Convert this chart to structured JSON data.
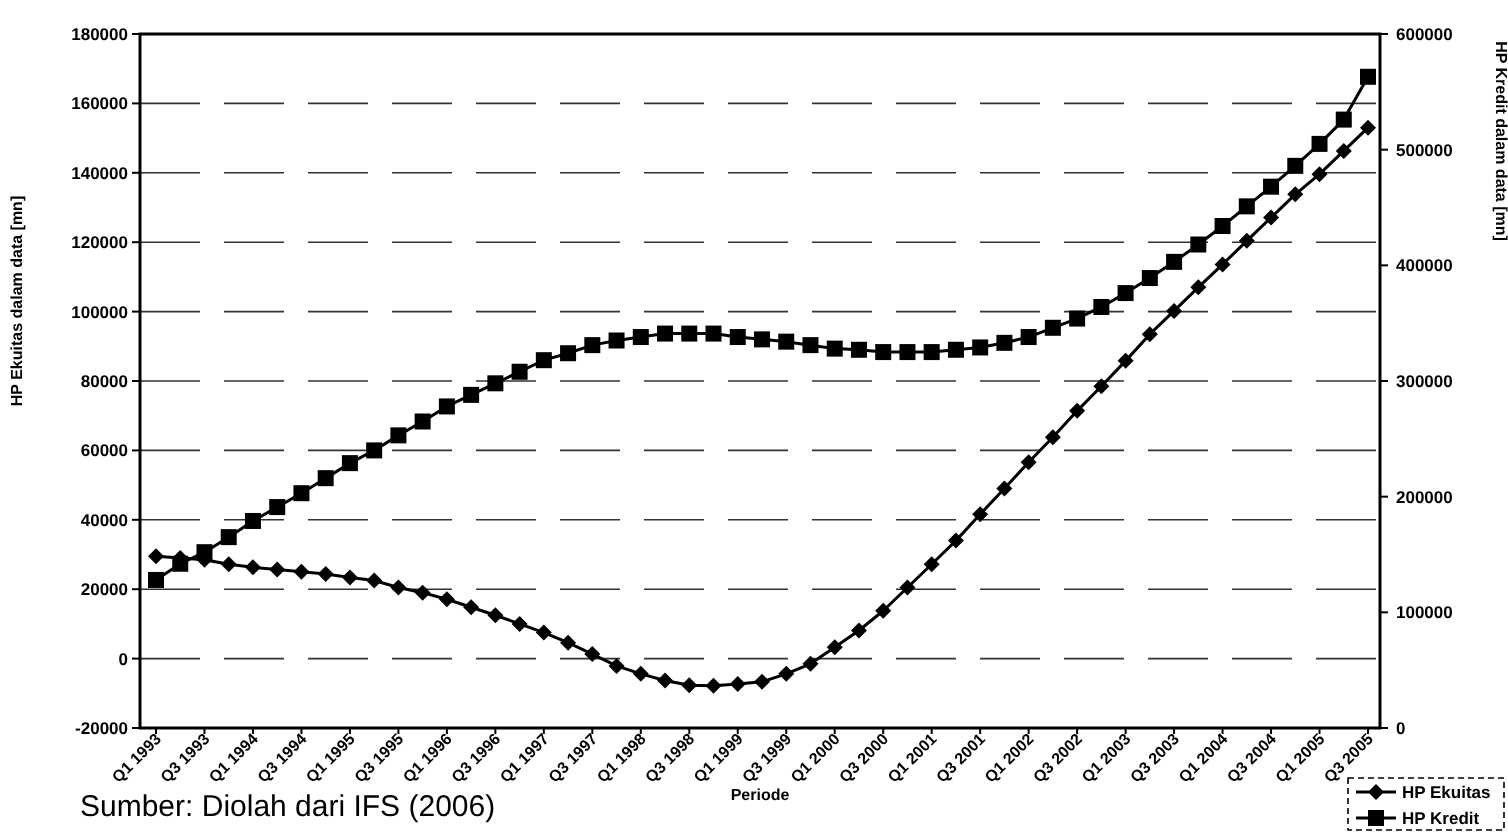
{
  "chart_data": {
    "type": "line",
    "xlabel": "Periode",
    "ylabel": "HP Ekuitas dalam data [mn]",
    "y2label": "HP Kredit dalam data [mn]",
    "annotations": [
      "Sumber: Diolah dari IFS (2006)"
    ],
    "categories": [
      "Q1 1993",
      null,
      "Q3 1993",
      null,
      "Q1 1994",
      null,
      "Q3 1994",
      null,
      "Q1 1995",
      null,
      "Q3 1995",
      null,
      "Q1 1996",
      null,
      "Q3 1996",
      null,
      "Q1 1997",
      null,
      "Q3 1997",
      null,
      "Q1 1998",
      null,
      "Q3 1998",
      null,
      "Q1 1999",
      null,
      "Q3 1999",
      null,
      "Q1 2000",
      null,
      "Q3 2000",
      null,
      "Q1 2001",
      null,
      "Q3 2001",
      null,
      "Q1 2002",
      null,
      "Q3 2002",
      null,
      "Q1 2003",
      null,
      "Q3 2003",
      null,
      "Q1 2004",
      null,
      "Q3 2004",
      null,
      "Q1 2005",
      null,
      "Q3 2005"
    ],
    "series": [
      {
        "name": "HP Ekuitas",
        "color": "#000000",
        "marker": "diamond",
        "values": [
          29500,
          29000,
          28500,
          27200,
          26300,
          25700,
          25000,
          24400,
          23400,
          22500,
          20500,
          19000,
          17100,
          14800,
          12500,
          10000,
          7500,
          4600,
          1300,
          -2100,
          -4400,
          -6300,
          -7700,
          -7800,
          -7300,
          -6700,
          -4400,
          -1500,
          3300,
          8100,
          13800,
          20500,
          27200,
          34000,
          41600,
          49000,
          56600,
          63800,
          71400,
          78500,
          85800,
          93500,
          100200,
          107000,
          113600,
          120400,
          127100,
          133800,
          139600,
          146300,
          153000
        ]
      },
      {
        "name": "HP Kredit",
        "color": "#000000",
        "marker": "square",
        "axis": "y2",
        "values": [
          128000,
          142000,
          152000,
          165000,
          179000,
          191000,
          203000,
          216000,
          229000,
          240000,
          253000,
          265000,
          278000,
          288000,
          298000,
          308000,
          318000,
          324000,
          331000,
          335000,
          338000,
          341000,
          341000,
          341000,
          338000,
          336000,
          334000,
          331000,
          328000,
          327000,
          325000,
          325000,
          325000,
          327000,
          329000,
          333000,
          338000,
          346000,
          354000,
          364000,
          376000,
          389000,
          403000,
          418000,
          434000,
          451000,
          468000,
          486000,
          505000,
          526000,
          563000
        ]
      }
    ],
    "ylim": [
      -20000,
      180000
    ],
    "yticks": [
      -20000,
      0,
      20000,
      40000,
      60000,
      80000,
      100000,
      120000,
      140000,
      160000,
      180000
    ],
    "y2lim": [
      0,
      600000
    ],
    "y2ticks": [
      0,
      100000,
      200000,
      300000,
      400000,
      500000,
      600000
    ],
    "grid": "y",
    "legend": "bottom right",
    "line_style": "solid"
  }
}
